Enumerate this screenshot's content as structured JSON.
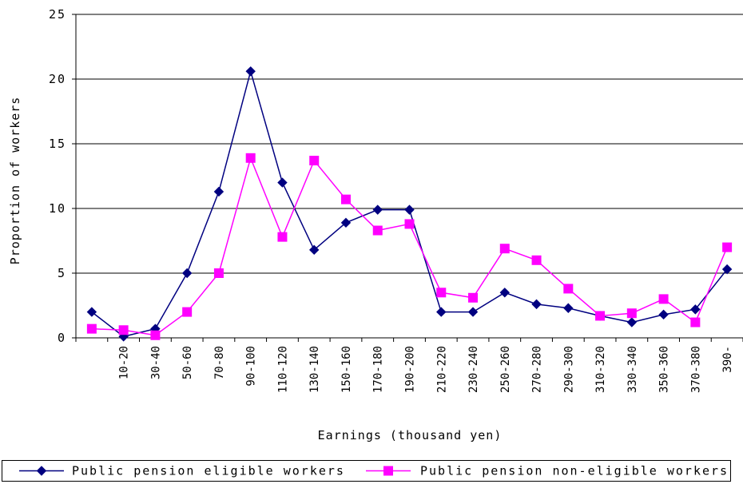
{
  "chart_data": {
    "type": "line",
    "title": "",
    "xlabel": "Earnings (thousand yen)",
    "ylabel": "Proportion of workers",
    "ylim": [
      0,
      25
    ],
    "yticks": [
      0,
      5,
      10,
      15,
      20,
      25
    ],
    "grid": true,
    "legend_placement": "bottom",
    "categories": [
      "",
      "10-20",
      "30-40",
      "50-60",
      "70-80",
      "90-100",
      "110-120",
      "130-140",
      "150-160",
      "170-180",
      "190-200",
      "210-220",
      "230-240",
      "250-260",
      "270-280",
      "290-300",
      "310-320",
      "330-340",
      "350-360",
      "370-380",
      "390-"
    ],
    "series": [
      {
        "name": "Public pension eligible workers",
        "color": "#000080",
        "marker": "diamond",
        "values": [
          2.0,
          0.1,
          0.7,
          5.0,
          11.3,
          20.6,
          12.0,
          6.8,
          8.9,
          9.9,
          9.9,
          2.0,
          2.0,
          3.5,
          2.6,
          2.3,
          1.7,
          1.2,
          1.8,
          2.2,
          5.3
        ]
      },
      {
        "name": "Public pension non-eligible workers",
        "color": "#ff00ff",
        "marker": "square",
        "values": [
          0.7,
          0.6,
          0.2,
          2.0,
          5.0,
          13.9,
          7.8,
          13.7,
          10.7,
          8.3,
          8.8,
          3.5,
          3.1,
          6.9,
          6.0,
          3.8,
          1.7,
          1.9,
          3.0,
          1.2,
          7.0
        ]
      }
    ]
  }
}
